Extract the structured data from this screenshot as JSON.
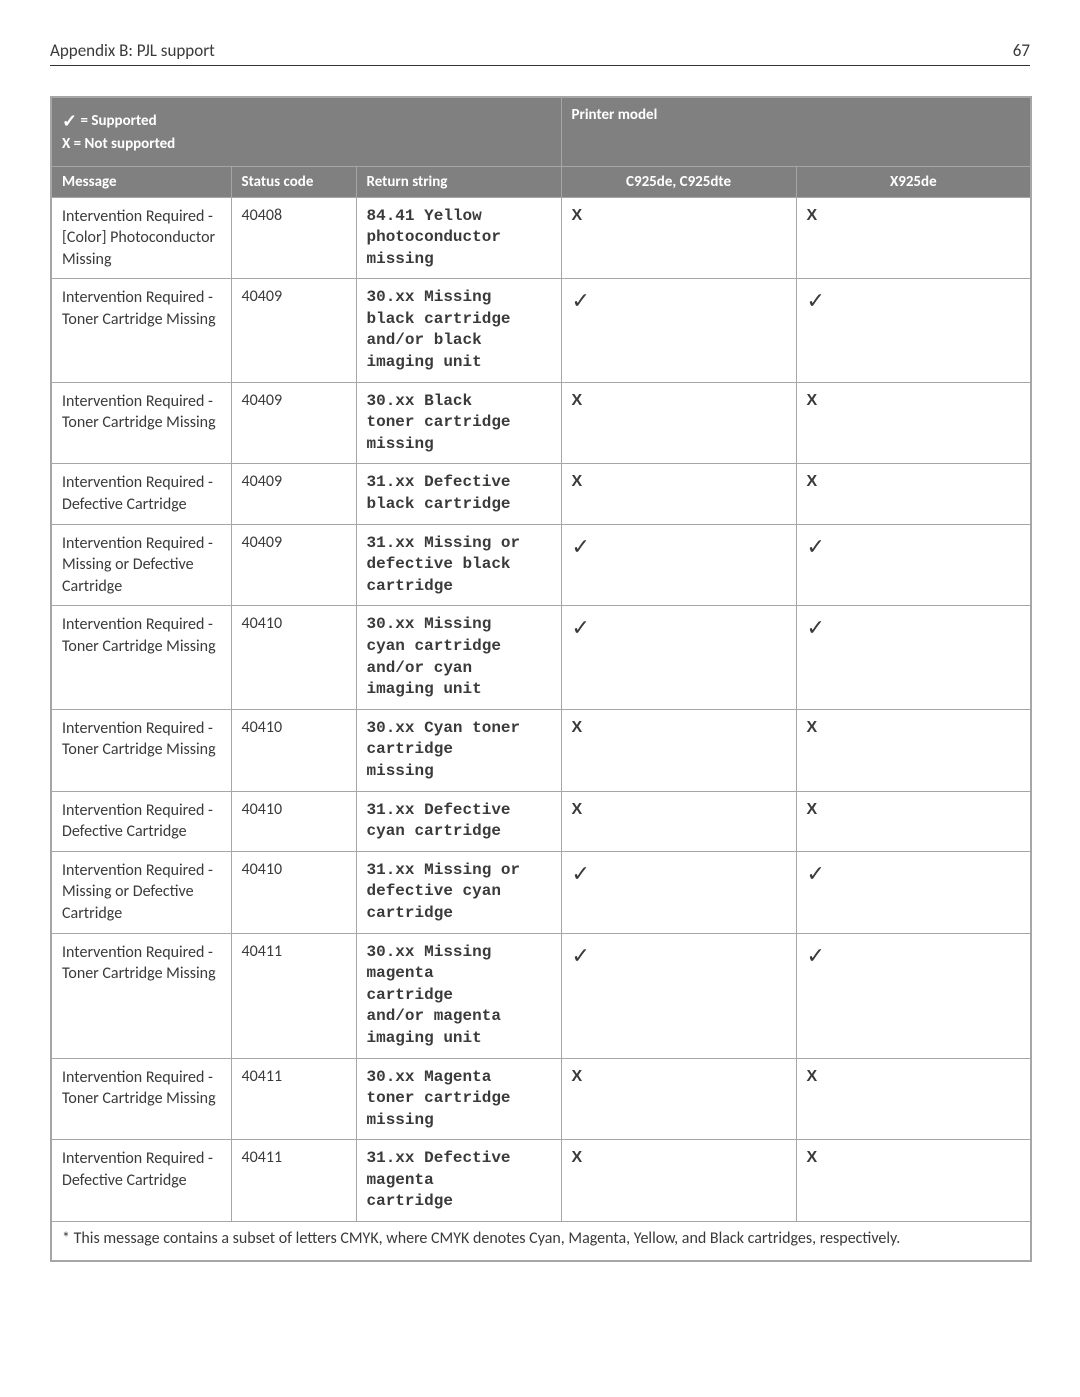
{
  "page": {
    "header_title": "Appendix B: PJL support",
    "page_number": "67"
  },
  "legend": {
    "supported_symbol": "✓",
    "supported_label": "= Supported",
    "not_supported_line": "X = Not supported",
    "printer_model_label": "Printer model"
  },
  "columns": {
    "message": "Message",
    "status_code": "Status code",
    "return_string": "Return string",
    "model1": "C925de, C925dte",
    "model2": "X925de"
  },
  "symbols": {
    "check": "✓",
    "x": "X"
  },
  "rows": [
    {
      "message": "Intervention Required - [Color] Photoconductor Missing",
      "code": "40408",
      "ret": "84.41 Yellow\nphotoconductor\nmissing",
      "m1": "x",
      "m2": "x"
    },
    {
      "message": "Intervention Required - Toner Cartridge Missing",
      "code": "40409",
      "ret": "30.xx Missing\nblack cartridge\nand/or black\nimaging unit",
      "m1": "check",
      "m2": "check"
    },
    {
      "message": "Intervention Required - Toner Cartridge Missing",
      "code": "40409",
      "ret": "30.xx Black\ntoner cartridge\nmissing",
      "m1": "x",
      "m2": "x"
    },
    {
      "message": "Intervention Required - Defective Cartridge",
      "code": "40409",
      "ret": "31.xx Defective\nblack cartridge",
      "m1": "x",
      "m2": "x"
    },
    {
      "message": "Intervention Required - Missing or Defective Cartridge",
      "code": "40409",
      "ret": "31.xx Missing or\ndefective black\ncartridge",
      "m1": "check",
      "m2": "check"
    },
    {
      "message": "Intervention Required - Toner Cartridge Missing",
      "code": "40410",
      "ret": "30.xx Missing\ncyan cartridge\nand/or cyan\nimaging unit",
      "m1": "check",
      "m2": "check"
    },
    {
      "message": "Intervention Required - Toner Cartridge Missing",
      "code": "40410",
      "ret": "30.xx Cyan toner\ncartridge\nmissing",
      "m1": "x",
      "m2": "x"
    },
    {
      "message": "Intervention Required - Defective Cartridge",
      "code": "40410",
      "ret": "31.xx Defective\ncyan cartridge",
      "m1": "x",
      "m2": "x"
    },
    {
      "message": "Intervention Required - Missing or Defective Cartridge",
      "code": "40410",
      "ret": "31.xx Missing or\ndefective cyan\ncartridge",
      "m1": "check",
      "m2": "check"
    },
    {
      "message": "Intervention Required - Toner Cartridge Missing",
      "code": "40411",
      "ret": "30.xx Missing\nmagenta\ncartridge\nand/or magenta\nimaging unit",
      "m1": "check",
      "m2": "check"
    },
    {
      "message": "Intervention Required - Toner Cartridge Missing",
      "code": "40411",
      "ret": "30.xx Magenta\ntoner cartridge\nmissing",
      "m1": "x",
      "m2": "x"
    },
    {
      "message": "Intervention Required - Defective Cartridge",
      "code": "40411",
      "ret": "31.xx Defective\nmagenta\ncartridge",
      "m1": "x",
      "m2": "x"
    }
  ],
  "footnote": "* This message contains a subset of letters CMYK, where CMYK denotes Cyan, Magenta, Yellow, and Black cartridges, respectively."
}
